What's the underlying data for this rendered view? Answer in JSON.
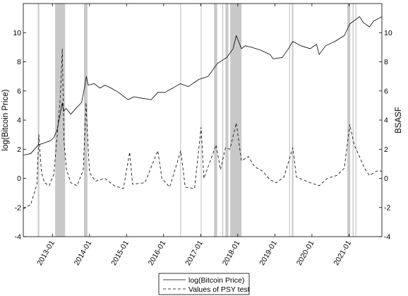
{
  "chart_data": {
    "type": "line",
    "ylabel_left": "log(Bitcoin Price)",
    "ylabel_right": "BSASF",
    "ylim": [
      -4,
      12
    ],
    "y_ticks": [
      -4,
      -2,
      0,
      2,
      4,
      6,
      8,
      10
    ],
    "x_range": [
      "2012-03-20",
      "2021-11-20"
    ],
    "x_tick_labels": [
      "2013-01",
      "2014-01",
      "2015-01",
      "2016-01",
      "2017-01",
      "2018-01",
      "2019-01",
      "2020-01",
      "2021-01"
    ],
    "x_tick_dates": [
      "2013-01-01",
      "2014-01-01",
      "2015-01-01",
      "2016-01-01",
      "2017-01-01",
      "2018-01-01",
      "2019-01-01",
      "2020-01-01",
      "2021-01-01"
    ],
    "legend": {
      "placement": "bottom-center",
      "entries": [
        "log(Bitcoin Price)",
        "Values of PSY test"
      ]
    },
    "series": [
      {
        "name": "log(Bitcoin Price)",
        "style": "solid",
        "points": [
          [
            "2012-03-20",
            1.6
          ],
          [
            "2012-06-01",
            1.7
          ],
          [
            "2012-08-15",
            2.3
          ],
          [
            "2012-10-01",
            2.4
          ],
          [
            "2012-12-15",
            2.6
          ],
          [
            "2013-01-15",
            2.8
          ],
          [
            "2013-02-15",
            3.3
          ],
          [
            "2013-03-15",
            4.3
          ],
          [
            "2013-04-08",
            5.2
          ],
          [
            "2013-04-20",
            4.6
          ],
          [
            "2013-05-15",
            4.8
          ],
          [
            "2013-07-01",
            4.4
          ],
          [
            "2013-09-01",
            4.9
          ],
          [
            "2013-10-15",
            5.2
          ],
          [
            "2013-11-15",
            6.3
          ],
          [
            "2013-12-01",
            7.0
          ],
          [
            "2013-12-20",
            6.4
          ],
          [
            "2014-02-15",
            6.5
          ],
          [
            "2014-04-15",
            6.2
          ],
          [
            "2014-06-01",
            6.4
          ],
          [
            "2014-08-01",
            6.2
          ],
          [
            "2014-10-15",
            5.9
          ],
          [
            "2015-01-15",
            5.4
          ],
          [
            "2015-03-15",
            5.6
          ],
          [
            "2015-06-01",
            5.5
          ],
          [
            "2015-09-01",
            5.4
          ],
          [
            "2015-11-05",
            5.9
          ],
          [
            "2016-01-15",
            5.9
          ],
          [
            "2016-06-15",
            6.5
          ],
          [
            "2016-09-01",
            6.3
          ],
          [
            "2016-12-15",
            6.8
          ],
          [
            "2017-03-15",
            7.0
          ],
          [
            "2017-06-15",
            7.9
          ],
          [
            "2017-09-15",
            8.3
          ],
          [
            "2017-11-15",
            8.9
          ],
          [
            "2017-12-17",
            9.8
          ],
          [
            "2018-02-06",
            8.9
          ],
          [
            "2018-03-15",
            9.1
          ],
          [
            "2018-05-15",
            9.0
          ],
          [
            "2018-08-15",
            8.8
          ],
          [
            "2018-11-15",
            8.5
          ],
          [
            "2018-12-15",
            8.2
          ],
          [
            "2019-03-15",
            8.3
          ],
          [
            "2019-05-15",
            8.9
          ],
          [
            "2019-06-26",
            9.4
          ],
          [
            "2019-09-15",
            9.1
          ],
          [
            "2019-12-15",
            8.9
          ],
          [
            "2020-02-15",
            9.2
          ],
          [
            "2020-03-13",
            8.5
          ],
          [
            "2020-05-15",
            9.1
          ],
          [
            "2020-08-15",
            9.4
          ],
          [
            "2020-11-15",
            9.8
          ],
          [
            "2021-01-08",
            10.6
          ],
          [
            "2021-04-14",
            11.1
          ],
          [
            "2021-05-20",
            10.7
          ],
          [
            "2021-07-20",
            10.4
          ],
          [
            "2021-09-01",
            10.8
          ],
          [
            "2021-11-20",
            11.1
          ]
        ]
      },
      {
        "name": "Values of PSY test",
        "style": "dashed",
        "points": [
          [
            "2012-03-20",
            -2.1
          ],
          [
            "2012-06-01",
            -1.8
          ],
          [
            "2012-08-01",
            -0.4
          ],
          [
            "2012-08-20",
            3.0
          ],
          [
            "2012-09-15",
            0.4
          ],
          [
            "2012-10-15",
            -0.3
          ],
          [
            "2012-12-01",
            -0.5
          ],
          [
            "2013-01-15",
            0.3
          ],
          [
            "2013-02-20",
            3.2
          ],
          [
            "2013-03-20",
            5.6
          ],
          [
            "2013-04-08",
            8.9
          ],
          [
            "2013-04-25",
            2.5
          ],
          [
            "2013-05-20",
            0.6
          ],
          [
            "2013-07-01",
            -0.3
          ],
          [
            "2013-09-01",
            -0.5
          ],
          [
            "2013-11-01",
            0.6
          ],
          [
            "2013-11-28",
            5.2
          ],
          [
            "2013-12-10",
            3.4
          ],
          [
            "2014-01-01",
            0.4
          ],
          [
            "2014-03-01",
            -0.2
          ],
          [
            "2014-06-01",
            0.0
          ],
          [
            "2014-09-01",
            -0.5
          ],
          [
            "2014-12-01",
            -0.7
          ],
          [
            "2015-02-01",
            1.8
          ],
          [
            "2015-03-01",
            -0.4
          ],
          [
            "2015-07-01",
            -0.3
          ],
          [
            "2015-11-05",
            1.9
          ],
          [
            "2015-12-15",
            0.0
          ],
          [
            "2016-03-01",
            -0.6
          ],
          [
            "2016-06-18",
            1.9
          ],
          [
            "2016-08-01",
            -0.6
          ],
          [
            "2016-11-01",
            -0.7
          ],
          [
            "2017-01-04",
            3.5
          ],
          [
            "2017-02-01",
            0.0
          ],
          [
            "2017-06-01",
            2.3
          ],
          [
            "2017-07-15",
            0.6
          ],
          [
            "2017-09-01",
            2.1
          ],
          [
            "2017-10-15",
            2.0
          ],
          [
            "2017-12-17",
            3.8
          ],
          [
            "2018-02-06",
            1.2
          ],
          [
            "2018-04-15",
            1.5
          ],
          [
            "2018-06-15",
            0.8
          ],
          [
            "2018-09-01",
            0.5
          ],
          [
            "2018-11-15",
            -0.1
          ],
          [
            "2019-01-15",
            -0.3
          ],
          [
            "2019-04-01",
            0.1
          ],
          [
            "2019-06-26",
            2.1
          ],
          [
            "2019-08-01",
            0.1
          ],
          [
            "2019-12-15",
            -0.3
          ],
          [
            "2020-03-13",
            -0.5
          ],
          [
            "2020-06-01",
            0.0
          ],
          [
            "2020-09-01",
            0.2
          ],
          [
            "2020-11-15",
            0.7
          ],
          [
            "2021-01-08",
            3.7
          ],
          [
            "2021-02-20",
            2.3
          ],
          [
            "2021-04-14",
            1.5
          ],
          [
            "2021-06-01",
            0.7
          ],
          [
            "2021-07-20",
            0.2
          ],
          [
            "2021-10-01",
            0.5
          ],
          [
            "2021-11-20",
            0.5
          ]
        ]
      }
    ],
    "shaded_periods": [
      [
        "2012-08-10",
        "2012-08-24"
      ],
      [
        "2013-01-28",
        "2013-05-06"
      ],
      [
        "2013-11-08",
        "2013-12-12"
      ],
      [
        "2016-06-12",
        "2016-06-20"
      ],
      [
        "2017-01-01",
        "2017-01-08"
      ],
      [
        "2017-05-12",
        "2017-06-12"
      ],
      [
        "2017-08-01",
        "2017-08-10"
      ],
      [
        "2017-09-01",
        "2017-09-30"
      ],
      [
        "2017-10-18",
        "2018-02-06"
      ],
      [
        "2019-05-22",
        "2019-05-28"
      ],
      [
        "2019-06-18",
        "2019-07-02"
      ],
      [
        "2020-12-15",
        "2021-01-12"
      ],
      [
        "2021-02-05",
        "2021-02-15"
      ],
      [
        "2021-03-05",
        "2021-03-12"
      ]
    ],
    "grid": false
  }
}
